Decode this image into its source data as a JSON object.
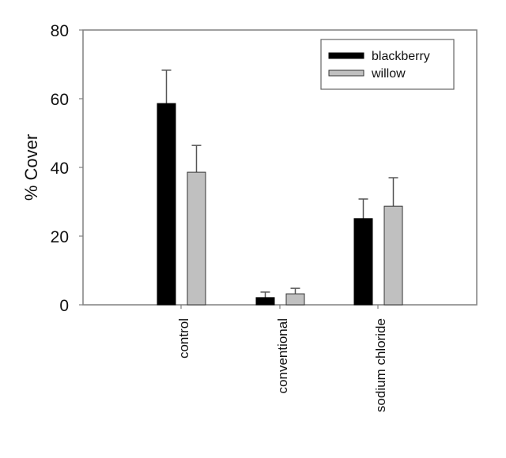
{
  "chart_data": {
    "type": "bar",
    "title": "",
    "xlabel": "",
    "ylabel": "% Cover",
    "ylim": [
      0,
      80
    ],
    "yticks": [
      0,
      20,
      40,
      60,
      80
    ],
    "categories": [
      "control",
      "conventional",
      "sodium chloride"
    ],
    "series": [
      {
        "name": "blackberry",
        "color": "#000000",
        "values": [
          58.6,
          2.1,
          25.1
        ],
        "error_upper": [
          9.7,
          1.6,
          5.7
        ]
      },
      {
        "name": "willow",
        "color": "#c0c0c0",
        "values": [
          38.6,
          3.2,
          28.7
        ],
        "error_upper": [
          7.8,
          1.6,
          8.3
        ]
      }
    ],
    "grid": false,
    "legend_position": "upper right",
    "error_bars": "upper only"
  },
  "labels": {
    "ylabel": "% Cover",
    "yticks": [
      "0",
      "20",
      "40",
      "60",
      "80"
    ],
    "categories": [
      "control",
      "conventional",
      "sodium chloride"
    ],
    "legend": [
      "blackberry",
      "willow"
    ]
  }
}
